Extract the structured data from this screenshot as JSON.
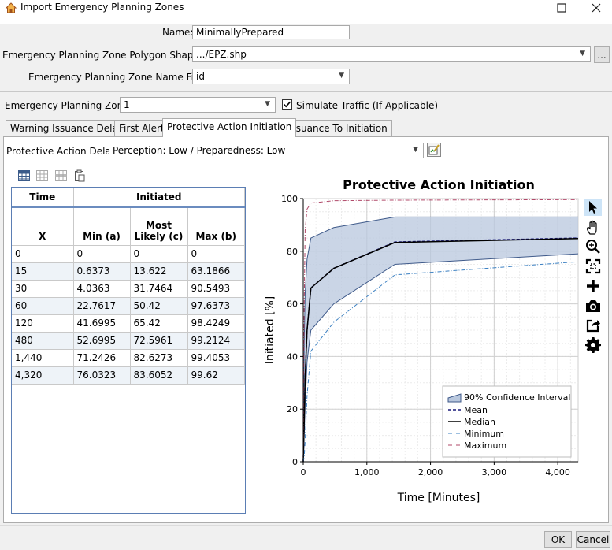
{
  "window": {
    "title": "Import Emergency Planning Zones"
  },
  "form": {
    "name_label": "Name:",
    "name_value": "MinimallyPrepared",
    "shapefile_label": "Emergency Planning Zone Polygon Shapefile:",
    "shapefile_value": ".../EPZ.shp",
    "browse_label": "...",
    "namefield_label": "Emergency Planning Zone Name Field:",
    "namefield_value": "id",
    "epz_label": "Emergency Planning Zone:",
    "epz_value": "1",
    "simulate_label": "Simulate Traffic (If Applicable)",
    "simulate_checked": true
  },
  "tabs": [
    {
      "label": "Warning Issuance Delay"
    },
    {
      "label": "First Alert"
    },
    {
      "label": "Protective Action Initiation"
    },
    {
      "label": "Issuance To Initiation"
    }
  ],
  "active_tab": 2,
  "delay": {
    "label": "Protective Action Delay:",
    "value": "Perception: Low / Preparedness: Low"
  },
  "table": {
    "group_headers": [
      "Time",
      "Initiated"
    ],
    "columns": [
      "X",
      "Min (a)",
      "Most Likely (c)",
      "Max (b)"
    ],
    "rows": [
      [
        "0",
        "0",
        "0",
        "0"
      ],
      [
        "15",
        "0.6373",
        "13.622",
        "63.1866"
      ],
      [
        "30",
        "4.0363",
        "31.7464",
        "90.5493"
      ],
      [
        "60",
        "22.7617",
        "50.42",
        "97.6373"
      ],
      [
        "120",
        "41.6995",
        "65.42",
        "98.4249"
      ],
      [
        "480",
        "52.6995",
        "72.5961",
        "99.2124"
      ],
      [
        "1,440",
        "71.2426",
        "82.6273",
        "99.4053"
      ],
      [
        "4,320",
        "76.0323",
        "83.6052",
        "99.62"
      ]
    ]
  },
  "buttons": {
    "ok": "OK",
    "cancel": "Cancel"
  },
  "colors": {
    "band": "#b8c7dd",
    "band_edge": "#3f5a8a",
    "mean": "#1a1a7a",
    "median": "#000000",
    "minimum": "#3a7fc1",
    "maximum": "#b04a6a"
  },
  "chart_data": {
    "type": "line",
    "title": "Protective Action Initiation",
    "xlabel": "Time [Minutes]",
    "ylabel": "Initiated [%]",
    "xlim": [
      0,
      4320
    ],
    "ylim": [
      0,
      100
    ],
    "xticks": [
      0,
      1000,
      2000,
      3000,
      4000
    ],
    "xtick_labels": [
      "0",
      "1,000",
      "2,000",
      "3,000",
      "4,000"
    ],
    "yticks": [
      0,
      20,
      40,
      60,
      80,
      100
    ],
    "ytick_labels": [
      "0",
      "20",
      "40",
      "60",
      "80",
      "100"
    ],
    "grid": true,
    "legend_position": "bottom-right",
    "band": {
      "name": "90% Confidence Interval",
      "x": [
        0,
        15,
        30,
        60,
        120,
        480,
        1440,
        4320
      ],
      "lower": [
        0,
        10,
        22,
        38,
        50,
        60,
        75,
        79
      ],
      "upper": [
        0,
        45,
        64,
        77,
        85,
        89,
        93,
        93
      ]
    },
    "series": [
      {
        "name": "Mean",
        "style": "dashed",
        "x": [
          0,
          15,
          30,
          60,
          120,
          480,
          1440,
          4320
        ],
        "values": [
          0,
          15,
          32,
          50,
          66,
          73.5,
          83.5,
          85
        ]
      },
      {
        "name": "Median",
        "style": "solid",
        "x": [
          0,
          15,
          30,
          60,
          120,
          480,
          1440,
          4320
        ],
        "values": [
          0,
          15,
          32,
          50,
          66,
          73.5,
          83.3,
          84.8
        ]
      },
      {
        "name": "Minimum",
        "style": "dashdot",
        "x": [
          0,
          15,
          30,
          60,
          120,
          480,
          1440,
          4320
        ],
        "values": [
          0,
          2,
          8,
          25,
          42,
          53,
          71,
          76
        ]
      },
      {
        "name": "Maximum",
        "style": "dashdot",
        "x": [
          0,
          15,
          30,
          60,
          120,
          480,
          1440,
          4320
        ],
        "values": [
          0,
          60,
          88,
          96,
          98.3,
          99.2,
          99.4,
          99.6
        ]
      }
    ]
  }
}
